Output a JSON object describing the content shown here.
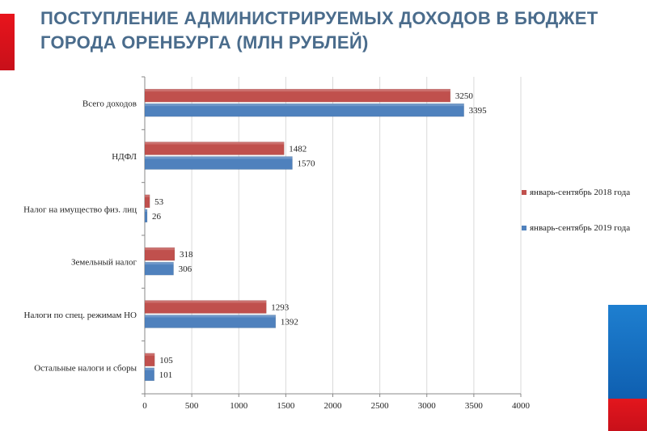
{
  "slide": {
    "title": "ПОСТУПЛЕНИЕ АДМИНИСТРИРУЕМЫХ ДОХОДОВ В БЮДЖЕТ ГОРОДА ОРЕНБУРГА (МЛН РУБЛЕЙ)"
  },
  "colors": {
    "series_2018": "#c0504d",
    "series_2019": "#4f81bd",
    "title": "#4a6c8c",
    "accent_red": "#e8141c",
    "accent_blue": "#1e7fd0"
  },
  "chart_data": {
    "type": "bar",
    "orientation": "horizontal",
    "categories": [
      "Всего доходов",
      "НДФЛ",
      "Налог на имущество физ. лиц",
      "Земельный налог",
      "Налоги по спец. режимам НО",
      "Остальные налоги и сборы"
    ],
    "series": [
      {
        "name": "январь-сентябрь 2018 года",
        "values": [
          3250,
          1482,
          53,
          318,
          1293,
          105
        ]
      },
      {
        "name": "январь-сентябрь 2019 года",
        "values": [
          3395,
          1570,
          26,
          306,
          1392,
          101
        ]
      }
    ],
    "xlim": [
      0,
      4000
    ],
    "xticks": [
      0,
      500,
      1000,
      1500,
      2000,
      2500,
      3000,
      3500,
      4000
    ],
    "grid": true,
    "legend_position": "right"
  }
}
